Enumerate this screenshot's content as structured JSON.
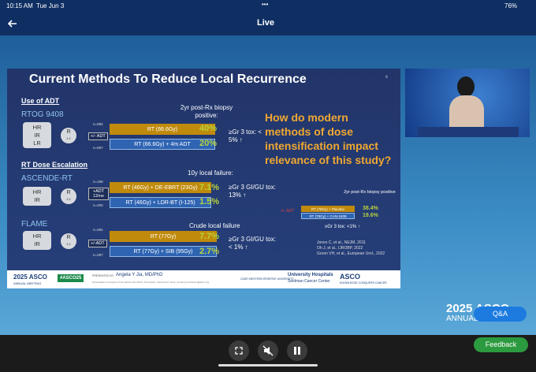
{
  "status_bar": {
    "time": "10:15 AM",
    "date": "Tue Jun 3",
    "dots": "•••",
    "battery": "76%"
  },
  "header": {
    "title": "Live"
  },
  "slide": {
    "title": "Current Methods To Reduce Local Recurrence",
    "adt": {
      "heading": "Use of ADT",
      "trial": "RTOG 9408",
      "groups": [
        "HR",
        "IR",
        "LR"
      ],
      "randomize": "R",
      "ratio": "1:1",
      "n_top": "n=992",
      "n_bottom": "n=987",
      "arm_label": "+/- ADT",
      "arm_top": "RT (66.6Gy)",
      "arm_bottom": "RT (66.6Gy) + 4m ADT",
      "endpoint": "2yr post-Rx biopsy positive:",
      "value_top": "40%",
      "value_bottom": "20%",
      "tox": "≥Gr 3 tox: < 5% ↑"
    },
    "dose": {
      "heading": "RT Dose Escalation",
      "trial": "ASCENDE-RT",
      "groups": [
        "HR",
        "IR"
      ],
      "randomize": "R",
      "ratio": "1:1",
      "n_top": "n=198",
      "n_bottom": "n=200",
      "arm_label": "+ADT 12mo",
      "arm_top": "RT (46Gy) + DE-EBRT (23Gy)",
      "arm_bottom": "RT (46Gy) + LDR-BT (I-125)",
      "endpoint": "10y local failure:",
      "value_top": "7.1%",
      "value_bottom": "1.5%",
      "tox": "≥Gr 3 GI/GU tox: 13% ↑"
    },
    "flame": {
      "trial": "FLAME",
      "groups": [
        "HR",
        "IR"
      ],
      "randomize": "R",
      "ratio": "1:1",
      "n_top": "n=284",
      "n_bottom": "n=287",
      "arm_label": "+/-ADT",
      "arm_top": "RT (77Gy)",
      "arm_bottom": "RT (77Gy) + SIB (95Gy)",
      "endpoint": "Crude local failure",
      "value_top": "7.7%",
      "value_bottom": "2.7%",
      "tox": "≥Gr 3 GI/GU tox: < 1% ↑"
    },
    "question": "How do modern methods of dose intensification impact relevance of this study?",
    "study": {
      "endpoint": "2yr post-Rx biopsy positive",
      "arm_label": "+/- ADT",
      "arm_top": "RT (78Gy) + Placebo",
      "arm_bottom": "RT (78Gy) + CAN-2409",
      "value_top": "38.4%",
      "value_bottom": "19.6%",
      "tox": "≥Gr 3 tox: <1% ↑"
    },
    "references": [
      "Jones C, et al., NEJM, 2011",
      "Oh J, et al., IJROBP, 2022",
      "Goren VH, et al., European Urol., 2022"
    ],
    "footer": {
      "meeting": "2025 ASCO",
      "meeting_sub": "ANNUAL MEETING",
      "hashtag": "#ASCO25",
      "presented_by": "PRESENTED BY:",
      "presenter": "Angela Y Jia, MD/PhD",
      "notice": "Presentation is property of the author and ASCO. Permission required for reuse; contact permissions@asco.org",
      "case": "CASE WESTERN RESERVE UNIVERSITY",
      "uh": "University Hospitals",
      "uh_sub": "Seidman Cancer Center",
      "asco": "ASCO",
      "asco_sub": "KNOWLEDGE CONQUERS CANCER"
    }
  },
  "overlay": {
    "brand": "2025 ASCO",
    "brand_sub": "ANNUAL",
    "qa": "Q&A",
    "feedback": "Feedback"
  }
}
